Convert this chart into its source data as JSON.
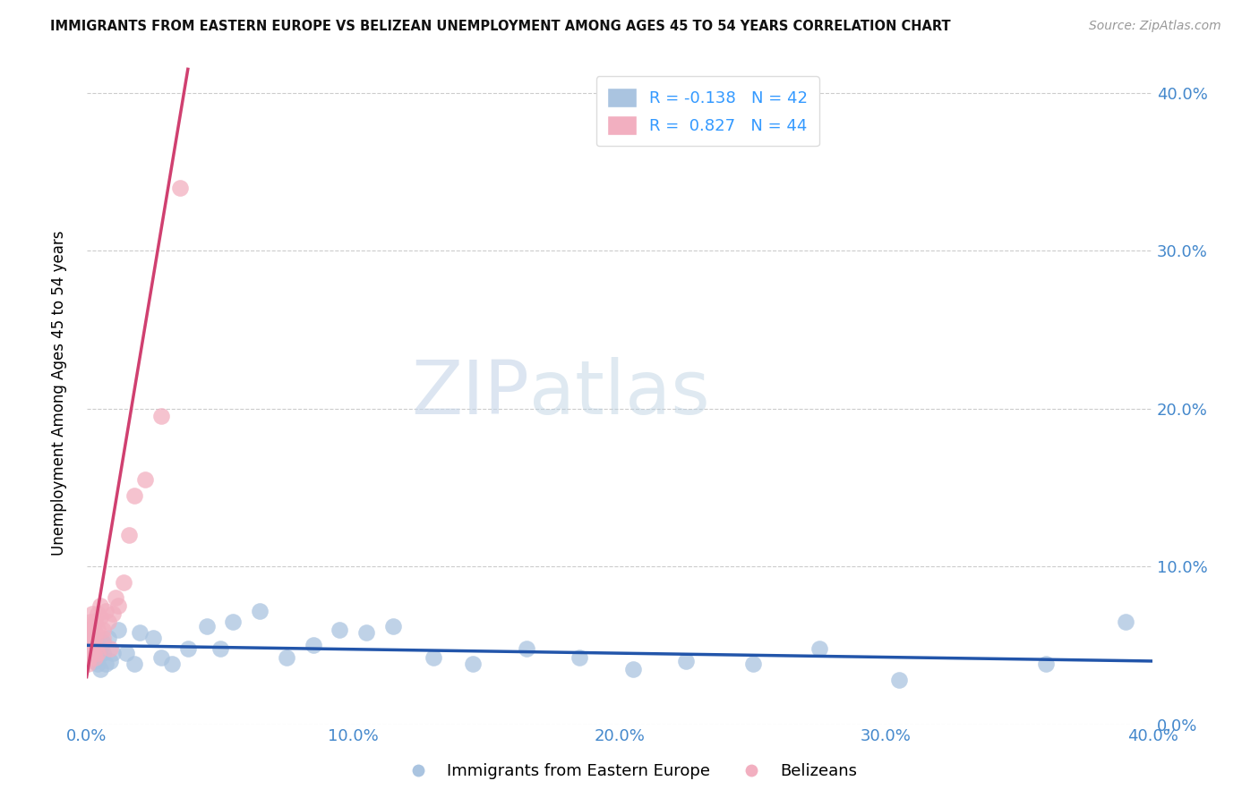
{
  "title": "IMMIGRANTS FROM EASTERN EUROPE VS BELIZEAN UNEMPLOYMENT AMONG AGES 45 TO 54 YEARS CORRELATION CHART",
  "source": "Source: ZipAtlas.com",
  "ylabel": "Unemployment Among Ages 45 to 54 years",
  "xlim": [
    0.0,
    0.4
  ],
  "ylim": [
    0.0,
    0.42
  ],
  "xticks": [
    0.0,
    0.1,
    0.2,
    0.3,
    0.4
  ],
  "yticks": [
    0.0,
    0.1,
    0.2,
    0.3,
    0.4
  ],
  "xticklabels": [
    "0.0%",
    "10.0%",
    "20.0%",
    "30.0%",
    "40.0%"
  ],
  "yticklabels_right": [
    "0.0%",
    "10.0%",
    "20.0%",
    "30.0%",
    "40.0%"
  ],
  "blue_R": -0.138,
  "blue_N": 42,
  "pink_R": 0.827,
  "pink_N": 44,
  "blue_color": "#aac4e0",
  "pink_color": "#f2afc0",
  "blue_line_color": "#2255aa",
  "pink_line_color": "#d04070",
  "legend_label_blue": "Immigrants from Eastern Europe",
  "legend_label_pink": "Belizeans",
  "watermark_zip": "ZIP",
  "watermark_atlas": "atlas",
  "blue_scatter_x": [
    0.001,
    0.002,
    0.003,
    0.003,
    0.004,
    0.004,
    0.005,
    0.005,
    0.006,
    0.006,
    0.007,
    0.008,
    0.009,
    0.01,
    0.012,
    0.015,
    0.018,
    0.02,
    0.025,
    0.028,
    0.032,
    0.038,
    0.045,
    0.05,
    0.055,
    0.065,
    0.075,
    0.085,
    0.095,
    0.105,
    0.115,
    0.13,
    0.145,
    0.165,
    0.185,
    0.205,
    0.225,
    0.25,
    0.275,
    0.305,
    0.36,
    0.39
  ],
  "blue_scatter_y": [
    0.045,
    0.05,
    0.04,
    0.055,
    0.042,
    0.038,
    0.048,
    0.035,
    0.045,
    0.052,
    0.038,
    0.055,
    0.04,
    0.045,
    0.06,
    0.045,
    0.038,
    0.058,
    0.055,
    0.042,
    0.038,
    0.048,
    0.062,
    0.048,
    0.065,
    0.072,
    0.042,
    0.05,
    0.06,
    0.058,
    0.062,
    0.042,
    0.038,
    0.048,
    0.042,
    0.035,
    0.04,
    0.038,
    0.048,
    0.028,
    0.038,
    0.065
  ],
  "pink_scatter_x": [
    0.0002,
    0.0003,
    0.0004,
    0.0005,
    0.0006,
    0.0007,
    0.0008,
    0.0009,
    0.001,
    0.001,
    0.0012,
    0.0013,
    0.0014,
    0.0015,
    0.0016,
    0.0018,
    0.002,
    0.002,
    0.0022,
    0.0025,
    0.003,
    0.003,
    0.003,
    0.0032,
    0.0035,
    0.004,
    0.004,
    0.0042,
    0.005,
    0.005,
    0.006,
    0.006,
    0.007,
    0.008,
    0.009,
    0.01,
    0.011,
    0.012,
    0.014,
    0.016,
    0.018,
    0.022,
    0.028,
    0.035
  ],
  "pink_scatter_y": [
    0.04,
    0.045,
    0.038,
    0.055,
    0.042,
    0.06,
    0.048,
    0.052,
    0.058,
    0.042,
    0.05,
    0.065,
    0.045,
    0.055,
    0.048,
    0.06,
    0.055,
    0.07,
    0.048,
    0.062,
    0.058,
    0.065,
    0.042,
    0.055,
    0.048,
    0.06,
    0.07,
    0.045,
    0.068,
    0.075,
    0.06,
    0.055,
    0.072,
    0.065,
    0.048,
    0.07,
    0.08,
    0.075,
    0.09,
    0.12,
    0.145,
    0.155,
    0.195,
    0.34
  ],
  "pink_line_x0": 0.0,
  "pink_line_y0": 0.03,
  "pink_line_x1": 0.038,
  "pink_line_y1": 0.415,
  "blue_line_x0": 0.0,
  "blue_line_y0": 0.05,
  "blue_line_x1": 0.4,
  "blue_line_y1": 0.04
}
